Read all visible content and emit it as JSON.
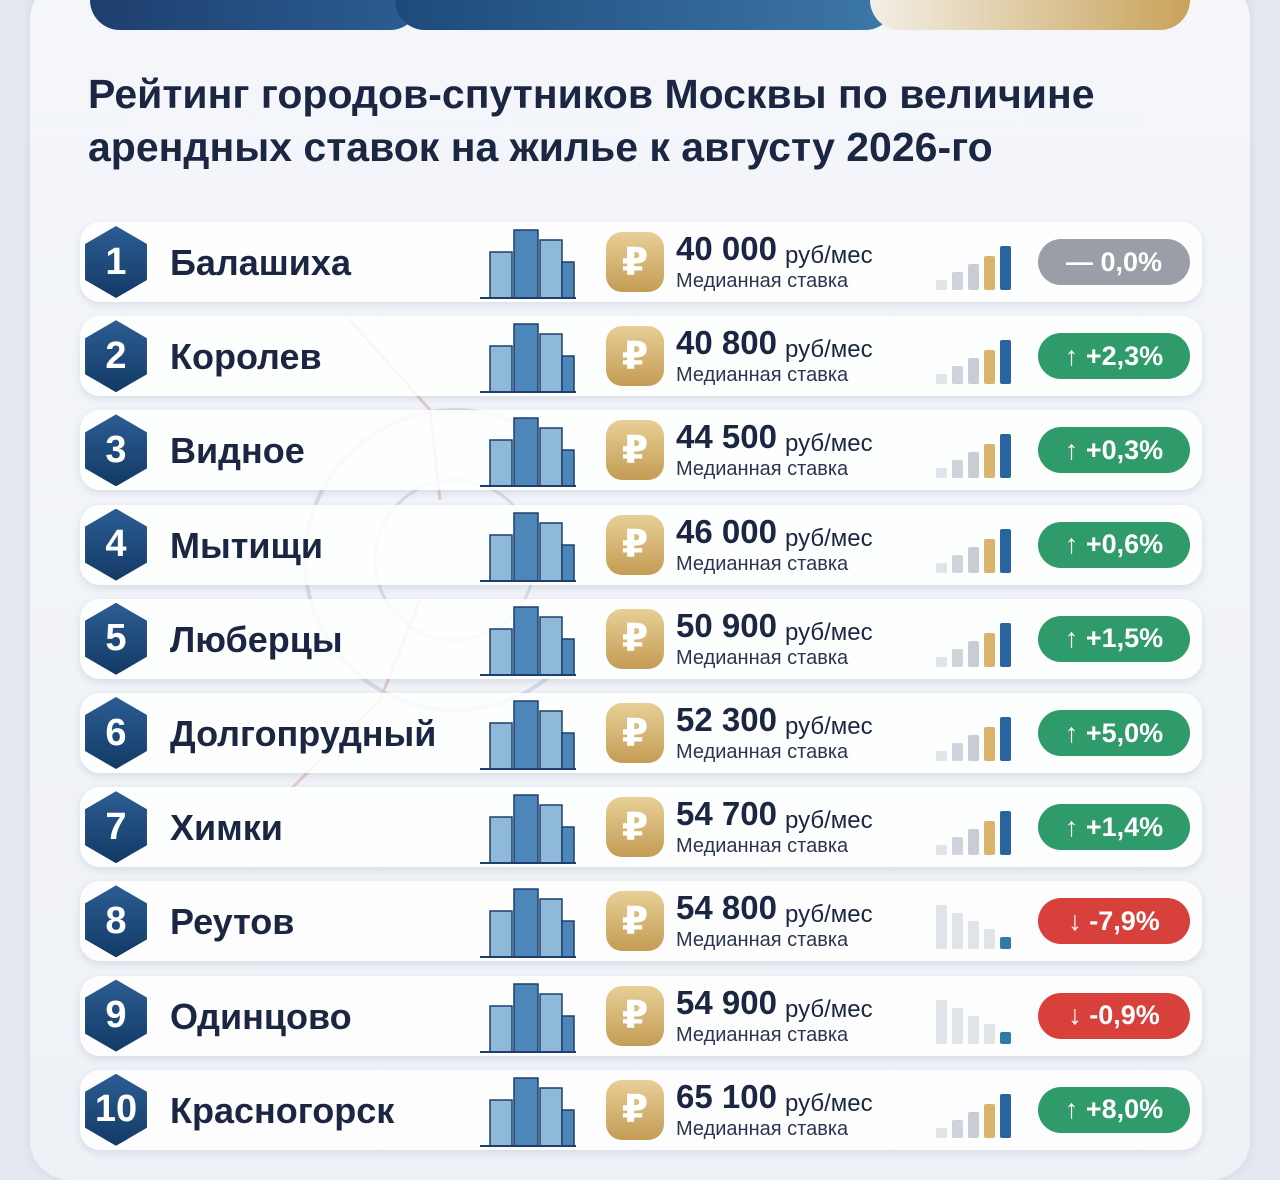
{
  "header": {
    "title": "Рейтинг городов-спутников Москвы по величине арендных ставок на жилье к августу 2026-го"
  },
  "rows": [
    {
      "rank": "1",
      "city": "Балашиха",
      "price": "40 000",
      "unit": "руб/мес",
      "sublabel": "Медианная ставка",
      "change": "— 0,0%",
      "color": "#9a9ea6"
    },
    {
      "rank": "2",
      "city": "Королев",
      "price": "40 800",
      "unit": "руб/мес",
      "sublabel": "Медианная ставка",
      "change": "↑ +2,3%",
      "color": "#2f9a6a"
    },
    {
      "rank": "3",
      "city": "Видное",
      "price": "44 500",
      "unit": "руб/мес",
      "sublabel": "Медианная ставка",
      "change": "↑ +0,3%",
      "color": "#2f9a6a"
    },
    {
      "rank": "4",
      "city": "Мытищи",
      "price": "46 000",
      "unit": "руб/мес",
      "sublabel": "Медианная ставка",
      "change": "↑ +0,6%",
      "color": "#2f9a6a"
    },
    {
      "rank": "5",
      "city": "Люберцы",
      "price": "50 900",
      "unit": "руб/мес",
      "sublabel": "Медианная ставка",
      "change": "↑ +1,5%",
      "color": "#2f9a6a"
    },
    {
      "rank": "6",
      "city": "Долгопрудный",
      "price": "52 300",
      "unit": "руб/мес",
      "sublabel": "Медианная ставка",
      "change": "↑ +5,0%",
      "color": "#2f9a6a"
    },
    {
      "rank": "7",
      "city": "Химки",
      "price": "54 700",
      "unit": "руб/мес",
      "sublabel": "Медианная ставка",
      "change": "↑ +1,4%",
      "color": "#2f9a6a"
    },
    {
      "rank": "8",
      "city": "Реутов",
      "price": "54 800",
      "unit": "руб/мес",
      "sublabel": "Медианная ставка",
      "change": "↓ -7,9%",
      "color": "#d8403c"
    },
    {
      "rank": "9",
      "city": "Одинцово",
      "price": "54 900",
      "unit": "руб/мес",
      "sublabel": "Медианная ставка",
      "change": "↓ -0,9%",
      "color": "#d8403c"
    },
    {
      "rank": "10",
      "city": "Красногорск",
      "price": "65 100",
      "unit": "руб/мес",
      "sublabel": "Медианная ставка",
      "change": "↑ +8,0%",
      "color": "#2f9a6a"
    }
  ]
}
